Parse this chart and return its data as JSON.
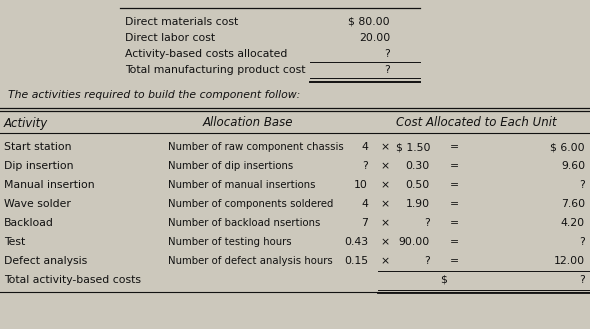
{
  "top_rows": [
    {
      "label": "Direct materials cost",
      "value": "$ 80.00"
    },
    {
      "label": "Direct labor cost",
      "value": "20.00"
    },
    {
      "label": "Activity-based costs allocated",
      "value": "?"
    },
    {
      "label": "Total manufacturing product cost",
      "value": "?"
    }
  ],
  "subtitle": "The activities required to build the component follow:",
  "activities": [
    {
      "activity": "Start station",
      "base": "Number of raw component chassis",
      "qty": "4",
      "rate": "$ 1.50",
      "eq": "=",
      "total": "$ 6.00"
    },
    {
      "activity": "Dip insertion",
      "base": "Number of dip insertions",
      "qty": "?",
      "rate": "0.30",
      "eq": "=",
      "total": "9.60"
    },
    {
      "activity": "Manual insertion",
      "base": "Number of manual insertions",
      "qty": "10",
      "rate": "0.50",
      "eq": "=",
      "total": "?"
    },
    {
      "activity": "Wave solder",
      "base": "Number of components soldered",
      "qty": "4",
      "rate": "1.90",
      "eq": "=",
      "total": "7.60"
    },
    {
      "activity": "Backload",
      "base": "Number of backload nsertions",
      "qty": "7",
      "rate": "?",
      "eq": "=",
      "total": "4.20"
    },
    {
      "activity": "Test",
      "base": "Number of testing hours",
      "qty": "0.43",
      "rate": "90.00",
      "eq": "=",
      "total": "?"
    },
    {
      "activity": "Defect analysis",
      "base": "Number of defect analysis hours",
      "qty": "0.15",
      "rate": "?",
      "eq": "=",
      "total": "12.00"
    },
    {
      "activity": "Total activity-based costs",
      "base": "",
      "qty": "",
      "rate": "",
      "eq": "",
      "total": "?"
    }
  ],
  "total_label": "Total activity-based costs",
  "bg_color": "#ccc8bc",
  "text_color": "#111111",
  "fs": 7.8,
  "hfs": 8.5
}
